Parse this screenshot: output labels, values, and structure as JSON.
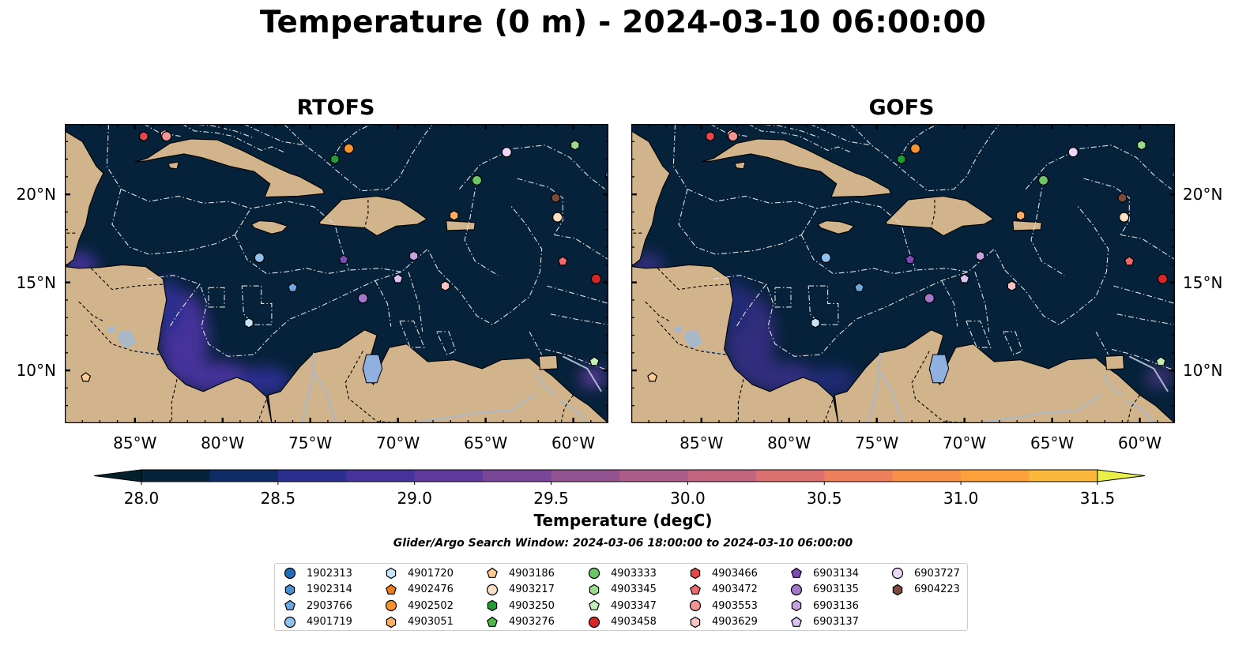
{
  "title": "Temperature (0 m) - 2024-03-10 06:00:00",
  "panels": [
    {
      "title": "RTOFS",
      "hot_intensity": 1.0
    },
    {
      "title": "GOFS",
      "hot_intensity": 0.7
    }
  ],
  "map_extent": {
    "lon_min": -89,
    "lon_max": -58,
    "lat_min": 7,
    "lat_max": 24
  },
  "lon_ticks": [
    {
      "value": -85,
      "label": "85°W"
    },
    {
      "value": -80,
      "label": "80°W"
    },
    {
      "value": -75,
      "label": "75°W"
    },
    {
      "value": -70,
      "label": "70°W"
    },
    {
      "value": -65,
      "label": "65°W"
    },
    {
      "value": -60,
      "label": "60°W"
    }
  ],
  "lat_ticks": [
    {
      "value": 10,
      "label": "10°N"
    },
    {
      "value": 15,
      "label": "15°N"
    },
    {
      "value": 20,
      "label": "20°N"
    }
  ],
  "colorbar": {
    "title": "Temperature (degC)",
    "min": 28.0,
    "max": 31.5,
    "step": 0.25,
    "ticks": [
      "28.0",
      "28.5",
      "29.0",
      "29.5",
      "30.0",
      "30.5",
      "31.0",
      "31.5"
    ],
    "colors": [
      "#06233a",
      "#0f2c66",
      "#2b2f8e",
      "#45339a",
      "#5f3a9c",
      "#7a4698",
      "#935290",
      "#aa5d88",
      "#c3657e",
      "#da7170",
      "#ee7e5c",
      "#fa8f47",
      "#fca13c",
      "#fbb93c"
    ],
    "under_color": "#04202f",
    "over_color": "#eaf04a"
  },
  "colors": {
    "land": "#d2b48c",
    "ocean": "#06223a",
    "lake": "#8fb0e0",
    "river": "#a8b8c8",
    "eez": "#e0e0e0"
  },
  "search_window": "Glider/Argo Search Window: 2024-03-06 18:00:00 to 2024-03-10 06:00:00",
  "legend": [
    {
      "id": "1902313",
      "marker": "circle",
      "color": "#1f6db8"
    },
    {
      "id": "1902314",
      "marker": "hexagon",
      "color": "#4a8fd0"
    },
    {
      "id": "2903766",
      "marker": "pentagon",
      "color": "#6ea8e3"
    },
    {
      "id": "4901719",
      "marker": "circle",
      "color": "#8fc0ee"
    },
    {
      "id": "4901720",
      "marker": "hexagon",
      "color": "#c4e4f8"
    },
    {
      "id": "4902476",
      "marker": "pentagon",
      "color": "#f07b1e"
    },
    {
      "id": "4902502",
      "marker": "circle",
      "color": "#f7922e"
    },
    {
      "id": "4903051",
      "marker": "hexagon",
      "color": "#fbad66"
    },
    {
      "id": "4903186",
      "marker": "pentagon",
      "color": "#fccb94"
    },
    {
      "id": "4903217",
      "marker": "circle",
      "color": "#fde0c4"
    },
    {
      "id": "4903250",
      "marker": "hexagon",
      "color": "#229a35"
    },
    {
      "id": "4903276",
      "marker": "pentagon",
      "color": "#4cb84a"
    },
    {
      "id": "4903333",
      "marker": "circle",
      "color": "#6dc566"
    },
    {
      "id": "4903345",
      "marker": "hexagon",
      "color": "#98dc8c"
    },
    {
      "id": "4903347",
      "marker": "pentagon",
      "color": "#c3f0b8"
    },
    {
      "id": "4903458",
      "marker": "circle",
      "color": "#d62728"
    },
    {
      "id": "4903466",
      "marker": "hexagon",
      "color": "#e54848"
    },
    {
      "id": "4903472",
      "marker": "pentagon",
      "color": "#ee6b6b"
    },
    {
      "id": "4903553",
      "marker": "circle",
      "color": "#f39393"
    },
    {
      "id": "4903629",
      "marker": "hexagon",
      "color": "#f8c3c3"
    },
    {
      "id": "6903134",
      "marker": "pentagon",
      "color": "#7c4bb4"
    },
    {
      "id": "6903135",
      "marker": "circle",
      "color": "#a278cc"
    },
    {
      "id": "6903136",
      "marker": "hexagon",
      "color": "#c3a4e0"
    },
    {
      "id": "6903137",
      "marker": "pentagon",
      "color": "#dac3f0"
    },
    {
      "id": "6903727",
      "marker": "circle",
      "color": "#ecd7f7"
    },
    {
      "id": "6904223",
      "marker": "hexagon",
      "color": "#7b4a3a"
    }
  ],
  "map_markers": [
    {
      "id": "4903466",
      "lon": -84.5,
      "lat": 23.3
    },
    {
      "id": "4903629",
      "lon": -83.3,
      "lat": 23.4
    },
    {
      "id": "4903553",
      "lon": -83.2,
      "lat": 23.3
    },
    {
      "id": "4903250",
      "lon": -73.6,
      "lat": 22.0
    },
    {
      "id": "4902502",
      "lon": -72.8,
      "lat": 22.6
    },
    {
      "id": "6903727",
      "lon": -63.8,
      "lat": 22.4
    },
    {
      "id": "4903345",
      "lon": -59.9,
      "lat": 22.8
    },
    {
      "id": "1902313",
      "lon": -57.9,
      "lat": 21.1
    },
    {
      "id": "4903333",
      "lon": -65.5,
      "lat": 20.8
    },
    {
      "id": "6904223",
      "lon": -61.0,
      "lat": 19.8
    },
    {
      "id": "4903051",
      "lon": -66.8,
      "lat": 18.8
    },
    {
      "id": "4903217",
      "lon": -60.9,
      "lat": 18.7
    },
    {
      "id": "4901719",
      "lon": -77.9,
      "lat": 16.4
    },
    {
      "id": "6903134",
      "lon": -73.1,
      "lat": 16.3
    },
    {
      "id": "6903136",
      "lon": -69.1,
      "lat": 16.5
    },
    {
      "id": "4903472",
      "lon": -60.6,
      "lat": 16.2
    },
    {
      "id": "6903137",
      "lon": -70.0,
      "lat": 15.2
    },
    {
      "id": "2903766",
      "lon": -76.0,
      "lat": 14.7
    },
    {
      "id": "4903629",
      "lon": -67.3,
      "lat": 14.8
    },
    {
      "id": "4903458",
      "lon": -58.7,
      "lat": 15.2
    },
    {
      "id": "6903135",
      "lon": -72.0,
      "lat": 14.1
    },
    {
      "id": "4901720",
      "lon": -78.5,
      "lat": 12.7
    },
    {
      "id": "4903347",
      "lon": -58.8,
      "lat": 10.5
    },
    {
      "id": "4903186",
      "lon": -87.8,
      "lat": 9.6
    }
  ]
}
